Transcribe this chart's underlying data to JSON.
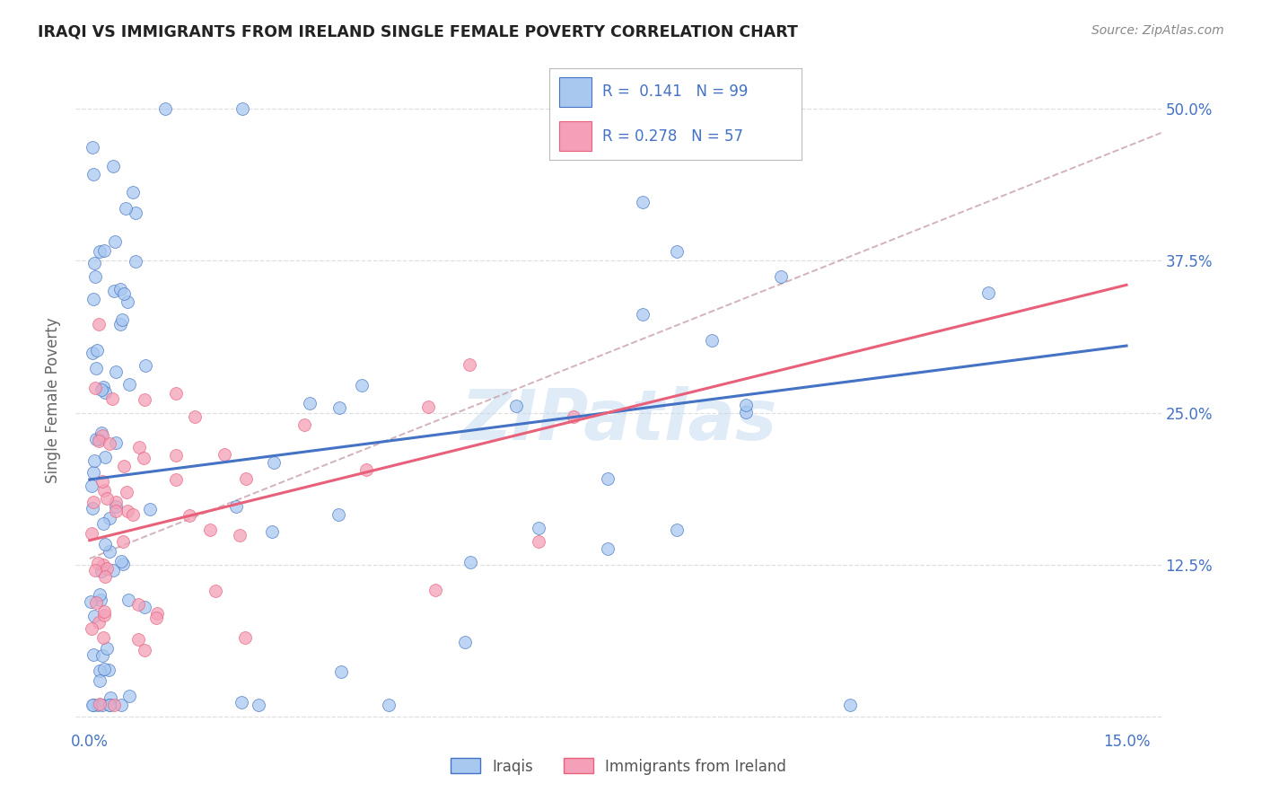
{
  "title": "IRAQI VS IMMIGRANTS FROM IRELAND SINGLE FEMALE POVERTY CORRELATION CHART",
  "source": "Source: ZipAtlas.com",
  "ylabel": "Single Female Poverty",
  "x_ticks": [
    0.0,
    0.03,
    0.06,
    0.09,
    0.12,
    0.15
  ],
  "x_tick_labels": [
    "0.0%",
    "",
    "",
    "",
    "",
    "15.0%"
  ],
  "y_ticks": [
    0.0,
    0.125,
    0.25,
    0.375,
    0.5
  ],
  "y_tick_labels": [
    "",
    "12.5%",
    "25.0%",
    "37.5%",
    "50.0%"
  ],
  "xlim": [
    -0.002,
    0.155
  ],
  "ylim": [
    -0.01,
    0.53
  ],
  "legend_labels": [
    "Iraqis",
    "Immigrants from Ireland"
  ],
  "color_iraqis": "#A8C8F0",
  "color_ireland": "#F4A0B8",
  "line_color_iraqis": "#4472C4",
  "line_color_ireland": "#E8607A",
  "line_color_dashed": "#C8A0A8",
  "R_iraqis": 0.141,
  "N_iraqis": 99,
  "R_ireland": 0.278,
  "N_ireland": 57,
  "watermark": "ZIPatlas",
  "background_color": "#ffffff",
  "grid_color": "#DCDCDC",
  "blue_line_y0": 0.195,
  "blue_line_y1": 0.305,
  "pink_line_y0": 0.145,
  "pink_line_y1": 0.355,
  "dash_line_x0": 0.0,
  "dash_line_y0": 0.13,
  "dash_line_x1": 0.155,
  "dash_line_y1": 0.48
}
